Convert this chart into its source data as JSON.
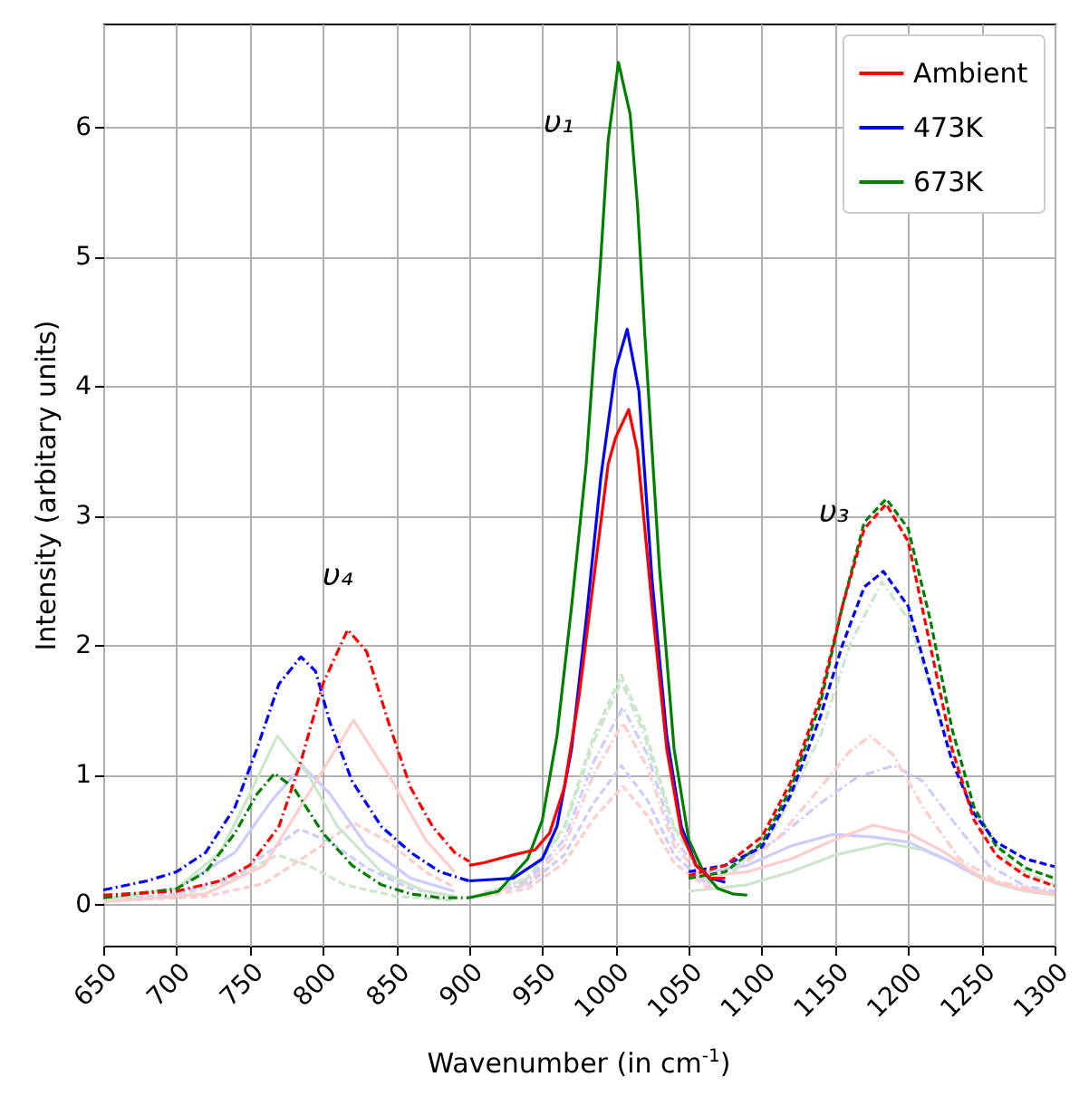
{
  "chart_data": {
    "type": "line",
    "xlabel": "Wavenumber (in cm$^{-1}$)",
    "ylabel": "Intensity (arbitary units)",
    "xlim": [
      650,
      1300
    ],
    "xticks": [
      650,
      700,
      750,
      800,
      850,
      900,
      950,
      1000,
      1050,
      1100,
      1150,
      1200,
      1250,
      1300
    ],
    "ylim": [
      -0.32,
      6.8
    ],
    "yticks": [
      0,
      1,
      2,
      3,
      4,
      5,
      6
    ],
    "grid": true,
    "legend": "top right",
    "annotations": [
      "υ₁",
      "υ₄",
      "υ₃"
    ],
    "series": [
      {
        "name": "Ambient",
        "color": "#ff0000",
        "line_style": "solid",
        "x": [
          900,
          910,
          930,
          945,
          955,
          965,
          975,
          985,
          995,
          1000,
          1009,
          1015,
          1025,
          1035,
          1045,
          1055,
          1065,
          1075
        ],
        "values": [
          0.3,
          0.32,
          0.38,
          0.42,
          0.55,
          0.9,
          1.6,
          2.5,
          3.4,
          3.6,
          3.82,
          3.5,
          2.3,
          1.2,
          0.55,
          0.3,
          0.2,
          0.2
        ]
      },
      {
        "name": "473K",
        "color": "#0000ff",
        "line_style": "solid",
        "x": [
          900,
          930,
          950,
          960,
          970,
          980,
          990,
          1000,
          1008,
          1016,
          1025,
          1035,
          1045,
          1055,
          1065,
          1075
        ],
        "values": [
          0.18,
          0.2,
          0.35,
          0.6,
          1.2,
          2.2,
          3.3,
          4.13,
          4.44,
          3.96,
          2.5,
          1.3,
          0.6,
          0.3,
          0.2,
          0.17
        ]
      },
      {
        "name": "673K",
        "color": "#008000",
        "line_style": "solid",
        "x": [
          900,
          920,
          940,
          950,
          960,
          970,
          980,
          990,
          995,
          1002,
          1010,
          1015,
          1020,
          1030,
          1040,
          1050,
          1060,
          1070,
          1080,
          1090
        ],
        "values": [
          0.05,
          0.1,
          0.35,
          0.65,
          1.3,
          2.3,
          3.4,
          5.0,
          5.9,
          6.5,
          6.1,
          5.4,
          4.4,
          2.6,
          1.2,
          0.5,
          0.25,
          0.12,
          0.08,
          0.07
        ]
      },
      {
        "color": "#ff0000",
        "line_style": "dashdot",
        "x": [
          650,
          700,
          730,
          750,
          770,
          785,
          800,
          817,
          830,
          845,
          860,
          875,
          890,
          900
        ],
        "values": [
          0.07,
          0.1,
          0.18,
          0.3,
          0.6,
          1.1,
          1.7,
          2.12,
          1.95,
          1.4,
          0.9,
          0.6,
          0.4,
          0.33
        ]
      },
      {
        "color": "#0000ff",
        "line_style": "dashdot",
        "x": [
          650,
          680,
          700,
          720,
          740,
          755,
          770,
          785,
          795,
          805,
          820,
          840,
          860,
          880,
          900
        ],
        "values": [
          0.11,
          0.18,
          0.25,
          0.4,
          0.75,
          1.2,
          1.7,
          1.91,
          1.8,
          1.4,
          0.95,
          0.6,
          0.4,
          0.25,
          0.18
        ]
      },
      {
        "color": "#008000",
        "line_style": "dashdot",
        "x": [
          650,
          700,
          720,
          740,
          755,
          767,
          780,
          800,
          820,
          840,
          860,
          880,
          900
        ],
        "values": [
          0.05,
          0.12,
          0.25,
          0.55,
          0.85,
          1.01,
          0.9,
          0.55,
          0.3,
          0.15,
          0.08,
          0.05,
          0.05
        ]
      },
      {
        "color": "#ff0000",
        "line_style": "dashed",
        "x": [
          1050,
          1075,
          1100,
          1120,
          1140,
          1155,
          1170,
          1185,
          1200,
          1215,
          1230,
          1245,
          1260,
          1280,
          1300
        ],
        "values": [
          0.22,
          0.3,
          0.52,
          0.95,
          1.6,
          2.3,
          2.9,
          3.09,
          2.8,
          2.0,
          1.2,
          0.65,
          0.38,
          0.22,
          0.14
        ]
      },
      {
        "color": "#0000ff",
        "line_style": "dashed",
        "x": [
          1050,
          1075,
          1100,
          1120,
          1140,
          1155,
          1170,
          1183,
          1200,
          1215,
          1230,
          1245,
          1260,
          1280,
          1300
        ],
        "values": [
          0.25,
          0.3,
          0.44,
          0.85,
          1.45,
          2.0,
          2.45,
          2.57,
          2.3,
          1.7,
          1.1,
          0.7,
          0.48,
          0.35,
          0.29
        ]
      },
      {
        "color": "#008000",
        "line_style": "dashed",
        "x": [
          1050,
          1075,
          1100,
          1120,
          1140,
          1155,
          1170,
          1185,
          1200,
          1215,
          1230,
          1245,
          1260,
          1280,
          1300
        ],
        "values": [
          0.2,
          0.25,
          0.47,
          0.9,
          1.55,
          2.3,
          2.95,
          3.13,
          2.9,
          2.2,
          1.35,
          0.75,
          0.45,
          0.28,
          0.2
        ]
      },
      {
        "color": "#cce6cc",
        "line_style": "solid",
        "x": [
          650,
          700,
          730,
          750,
          769,
          790,
          810,
          840,
          870,
          890
        ],
        "values": [
          0.03,
          0.12,
          0.4,
          0.85,
          1.3,
          1.0,
          0.6,
          0.25,
          0.1,
          0.06
        ]
      },
      {
        "color": "#ffcccc",
        "line_style": "solid",
        "x": [
          650,
          720,
          760,
          790,
          821,
          845,
          870,
          890
        ],
        "values": [
          0.02,
          0.08,
          0.3,
          0.85,
          1.42,
          1.0,
          0.5,
          0.25
        ]
      },
      {
        "color": "#ccccff",
        "line_style": "solid",
        "x": [
          650,
          700,
          740,
          765,
          786,
          805,
          830,
          860,
          890
        ],
        "values": [
          0.04,
          0.12,
          0.4,
          0.8,
          1.07,
          0.85,
          0.45,
          0.2,
          0.1
        ]
      },
      {
        "color": "#ccccff",
        "line_style": "dashed",
        "x": [
          650,
          700,
          740,
          765,
          784,
          805,
          830,
          860,
          890
        ],
        "values": [
          0.03,
          0.08,
          0.22,
          0.42,
          0.58,
          0.48,
          0.28,
          0.12,
          0.06
        ]
      },
      {
        "color": "#ffcccc",
        "line_style": "dashed",
        "x": [
          650,
          720,
          760,
          795,
          821,
          845,
          870,
          890
        ],
        "values": [
          0.02,
          0.06,
          0.16,
          0.42,
          0.63,
          0.48,
          0.25,
          0.13
        ]
      },
      {
        "color": "#cce6cc",
        "line_style": "dashed",
        "x": [
          650,
          700,
          735,
          755,
          769,
          790,
          815,
          850,
          890
        ],
        "values": [
          0.02,
          0.06,
          0.18,
          0.3,
          0.38,
          0.3,
          0.15,
          0.06,
          0.03
        ]
      },
      {
        "color": "#cce6cc",
        "line_style": "dashed",
        "x": [
          910,
          940,
          965,
          985,
          1004,
          1020,
          1040,
          1065
        ],
        "values": [
          0.08,
          0.2,
          0.6,
          1.3,
          1.77,
          1.35,
          0.6,
          0.15
        ]
      },
      {
        "color": "#cce6cc",
        "line_style": "dashdot",
        "x": [
          910,
          940,
          965,
          985,
          1004,
          1020,
          1040,
          1065
        ],
        "values": [
          0.08,
          0.2,
          0.58,
          1.25,
          1.72,
          1.3,
          0.58,
          0.15
        ]
      },
      {
        "color": "#ccccff",
        "line_style": "dashdot",
        "x": [
          910,
          940,
          965,
          985,
          1005,
          1022,
          1040,
          1065
        ],
        "values": [
          0.09,
          0.18,
          0.5,
          1.1,
          1.52,
          1.15,
          0.5,
          0.16
        ]
      },
      {
        "color": "#ffcccc",
        "line_style": "dashdot",
        "x": [
          910,
          940,
          965,
          985,
          1005,
          1022,
          1040,
          1065
        ],
        "values": [
          0.08,
          0.16,
          0.45,
          1.0,
          1.4,
          1.05,
          0.45,
          0.14
        ]
      },
      {
        "color": "#ccccff",
        "line_style": "dashed",
        "x": [
          910,
          940,
          965,
          985,
          1004,
          1022,
          1040,
          1065
        ],
        "values": [
          0.08,
          0.15,
          0.38,
          0.78,
          1.07,
          0.8,
          0.38,
          0.13
        ]
      },
      {
        "color": "#ffcccc",
        "line_style": "dashed",
        "x": [
          910,
          940,
          965,
          985,
          1005,
          1022,
          1040,
          1065
        ],
        "values": [
          0.06,
          0.12,
          0.32,
          0.66,
          0.91,
          0.68,
          0.32,
          0.11
        ]
      },
      {
        "color": "#cce6cc",
        "line_style": "dashdot",
        "x": [
          1080,
          1110,
          1140,
          1160,
          1182,
          1200,
          1220,
          1245,
          1270,
          1300
        ],
        "values": [
          0.25,
          0.6,
          1.3,
          2.0,
          2.49,
          2.2,
          1.5,
          0.7,
          0.3,
          0.15
        ]
      },
      {
        "color": "#ffcccc",
        "line_style": "dashdot",
        "x": [
          1080,
          1110,
          1140,
          1160,
          1174,
          1190,
          1210,
          1235,
          1260,
          1300
        ],
        "values": [
          0.25,
          0.5,
          0.9,
          1.18,
          1.3,
          1.15,
          0.75,
          0.35,
          0.18,
          0.08
        ]
      },
      {
        "color": "#ccccff",
        "line_style": "dashdot",
        "x": [
          1080,
          1110,
          1140,
          1165,
          1190,
          1210,
          1230,
          1255,
          1280,
          1300
        ],
        "values": [
          0.28,
          0.5,
          0.78,
          0.98,
          1.07,
          0.95,
          0.65,
          0.3,
          0.14,
          0.1
        ]
      },
      {
        "color": "#ffcccc",
        "line_style": "solid",
        "x": [
          1050,
          1090,
          1120,
          1150,
          1176,
          1200,
          1225,
          1250,
          1275,
          1300
        ],
        "values": [
          0.2,
          0.25,
          0.35,
          0.5,
          0.61,
          0.55,
          0.4,
          0.2,
          0.12,
          0.08
        ]
      },
      {
        "color": "#ccccff",
        "line_style": "solid",
        "x": [
          1050,
          1090,
          1120,
          1149,
          1175,
          1200,
          1225,
          1250,
          1275,
          1300
        ],
        "values": [
          0.22,
          0.3,
          0.45,
          0.54,
          0.52,
          0.48,
          0.35,
          0.2,
          0.12,
          0.08
        ]
      },
      {
        "color": "#cce6cc",
        "line_style": "solid",
        "x": [
          1050,
          1090,
          1120,
          1150,
          1186,
          1210,
          1235,
          1260,
          1280,
          1300
        ],
        "values": [
          0.1,
          0.15,
          0.25,
          0.38,
          0.47,
          0.42,
          0.3,
          0.16,
          0.1,
          0.07
        ]
      }
    ]
  }
}
